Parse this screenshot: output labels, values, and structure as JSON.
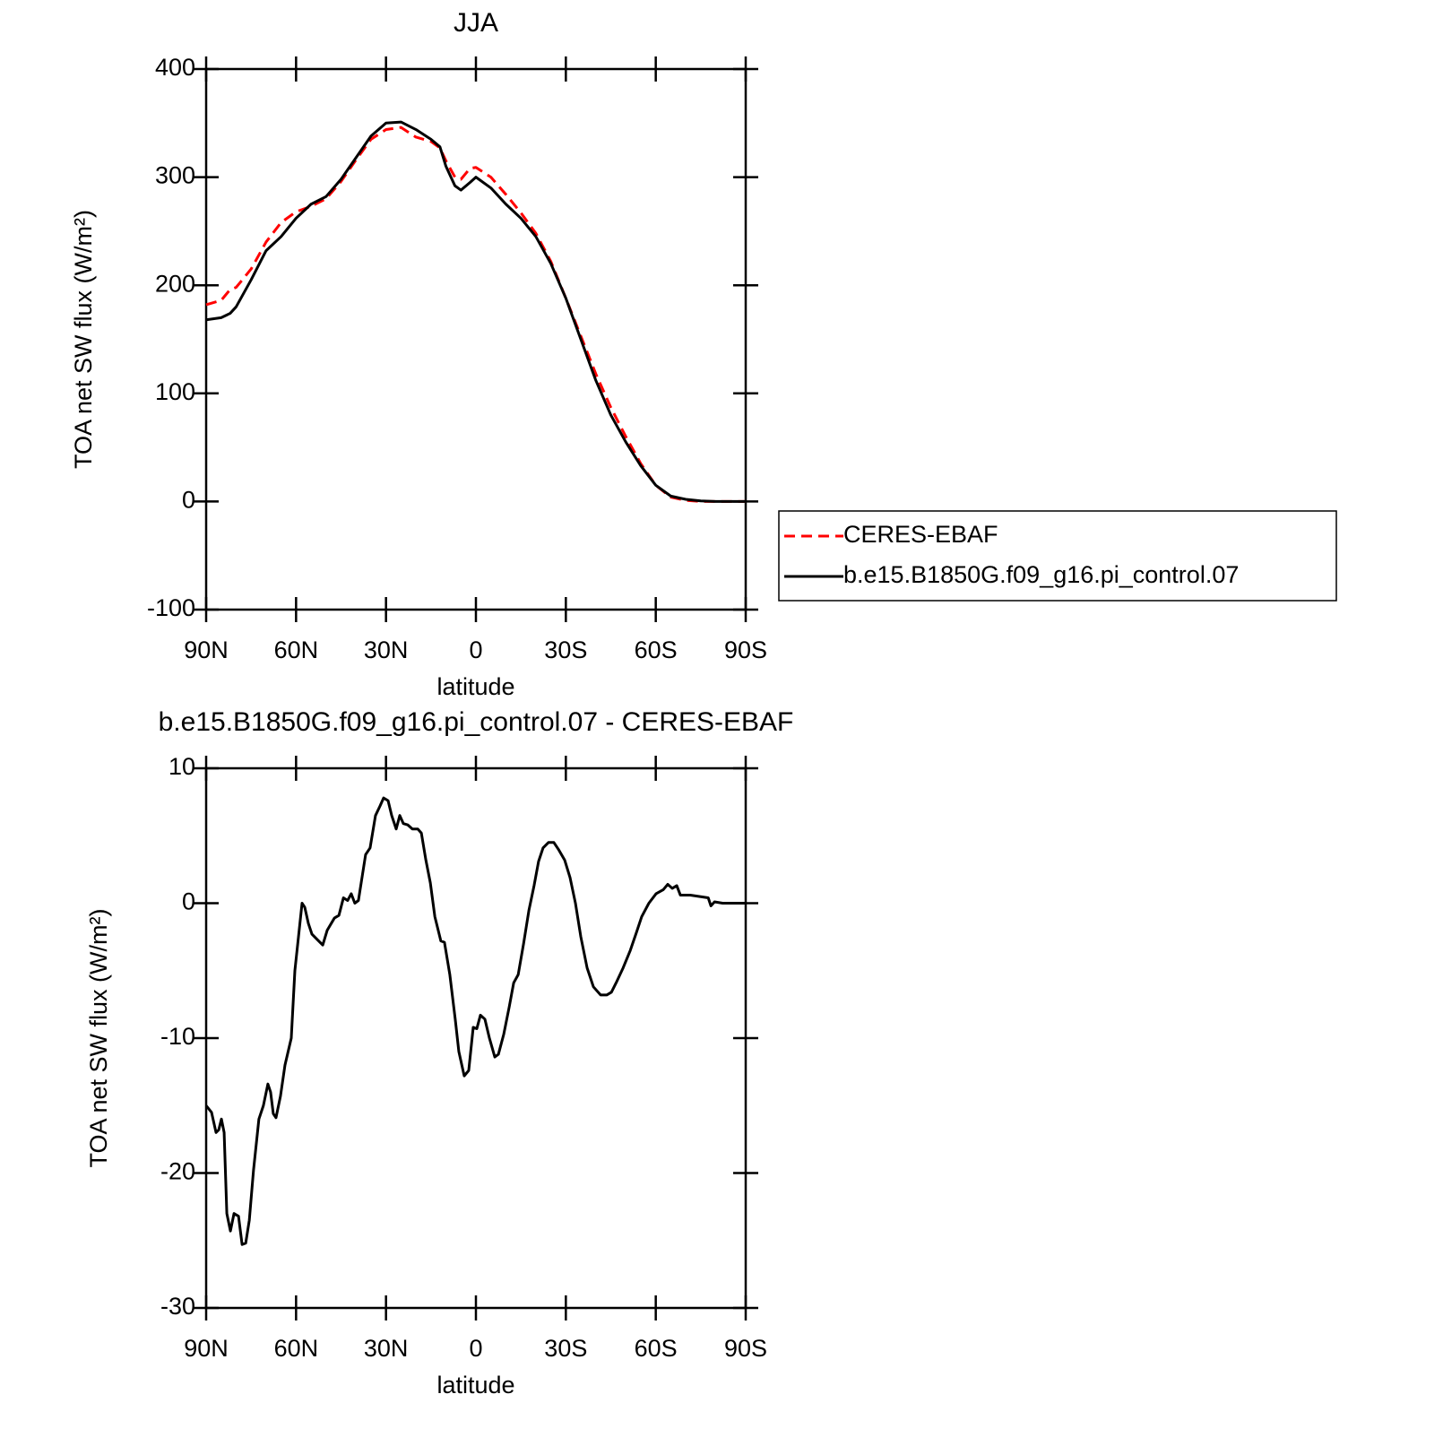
{
  "chart_data": [
    {
      "type": "line",
      "title": "JJA",
      "xlabel": "latitude",
      "ylabel": "TOA net SW flux (W/m²)",
      "x": [
        90,
        85,
        82,
        80,
        75,
        70,
        65,
        60,
        55,
        50,
        45,
        40,
        35,
        30,
        25,
        20,
        15,
        12,
        10,
        7,
        5,
        2,
        0,
        -5,
        -10,
        -15,
        -20,
        -25,
        -30,
        -35,
        -40,
        -45,
        -50,
        -55,
        -60,
        -65,
        -70,
        -75,
        -80,
        -90
      ],
      "xlim": [
        90,
        -90
      ],
      "xticks": [
        {
          "value": 90,
          "label": "90N"
        },
        {
          "value": 60,
          "label": "60N"
        },
        {
          "value": 30,
          "label": "30N"
        },
        0,
        {
          "value": -30,
          "label": "30S"
        },
        {
          "value": -60,
          "label": "60S"
        },
        {
          "value": -90,
          "label": "90S"
        }
      ],
      "ylim": [
        -100,
        400
      ],
      "yticks": [
        -100,
        0,
        100,
        200,
        300,
        400
      ],
      "legend": "right",
      "series": [
        {
          "name": "CERES-EBAF",
          "color": "#ff0000",
          "linestyle": "dashed",
          "values": [
            182,
            186,
            196,
            198,
            215,
            240,
            258,
            268,
            273,
            280,
            296,
            316,
            335,
            344,
            346,
            337,
            333,
            327,
            315,
            300,
            298,
            308,
            309,
            300,
            284,
            267,
            248,
            222,
            188,
            153,
            118,
            87,
            60,
            35,
            15,
            4,
            1,
            0,
            0,
            0
          ]
        },
        {
          "name": "b.e15.B1850G.f09_g16.pi_control.07",
          "color": "#000000",
          "linestyle": "solid",
          "values": [
            168,
            170,
            174,
            180,
            205,
            232,
            245,
            262,
            275,
            282,
            298,
            318,
            338,
            350,
            351,
            344,
            335,
            328,
            310,
            292,
            288,
            295,
            300,
            290,
            275,
            262,
            245,
            220,
            188,
            150,
            112,
            80,
            55,
            33,
            15,
            5,
            2,
            0.5,
            0,
            0
          ]
        }
      ]
    },
    {
      "type": "line",
      "title": "b.e15.B1850G.f09_g16.pi_control.07 - CERES-EBAF",
      "xlabel": "latitude",
      "ylabel": "TOA net SW flux (W/m²)",
      "x": [
        90,
        88.2,
        86.7,
        85.8,
        84.9,
        84,
        83.1,
        81.9,
        80.7,
        79.2,
        78,
        76.8,
        75.6,
        74.2,
        72.4,
        70.9,
        69.4,
        68.5,
        67.6,
        66.7,
        65.2,
        63.7,
        61.6,
        60.4,
        59.2,
        58,
        57.1,
        55.9,
        54.7,
        52.9,
        51.1,
        49.6,
        47.2,
        45.7,
        44.2,
        42.8,
        41.6,
        40.4,
        39.2,
        36.8,
        35.3,
        33.5,
        32,
        30.8,
        29.3,
        28.1,
        26.6,
        25.4,
        24.2,
        22.7,
        21.2,
        19.4,
        18.2,
        16.7,
        15.2,
        13.7,
        11.7,
        10.5,
        8.7,
        6.9,
        5.7,
        3.9,
        2.4,
        0.9,
        -0.3,
        -1.5,
        -3,
        -4.5,
        -6.3,
        -7.5,
        -9.3,
        -11.1,
        -12.6,
        -14.1,
        -15.9,
        -17.7,
        -19.4,
        -20.9,
        -22.4,
        -24.2,
        -26,
        -27.5,
        -29.6,
        -31.4,
        -33.2,
        -35,
        -37.1,
        -39.2,
        -41.6,
        -43.7,
        -45.2,
        -47,
        -49.1,
        -51.5,
        -53.5,
        -55.3,
        -57.7,
        -60.1,
        -62.5,
        -64,
        -65.5,
        -67,
        -68.2,
        -71.5,
        -74.5,
        -77.5,
        -78.4,
        -79.6,
        -82.3,
        -90
      ],
      "xlim": [
        90,
        -90
      ],
      "xticks": [
        {
          "value": 90,
          "label": "90N"
        },
        {
          "value": 60,
          "label": "60N"
        },
        {
          "value": 30,
          "label": "30N"
        },
        0,
        {
          "value": -30,
          "label": "30S"
        },
        {
          "value": -60,
          "label": "60S"
        },
        {
          "value": -90,
          "label": "90S"
        }
      ],
      "ylim": [
        -30,
        10
      ],
      "yticks": [
        -30,
        -20,
        -10,
        0,
        10
      ],
      "series": [
        {
          "color": "#000000",
          "linestyle": "solid",
          "values": [
            -15,
            -15.5,
            -17,
            -16.8,
            -16,
            -17,
            -23,
            -24.3,
            -23,
            -23.2,
            -25.3,
            -25.2,
            -23.5,
            -19.8,
            -16,
            -15,
            -13.4,
            -14,
            -15.6,
            -15.9,
            -14.3,
            -12,
            -10,
            -5,
            -2.5,
            0,
            -0.3,
            -1.5,
            -2.3,
            -2.7,
            -3.1,
            -2,
            -1.1,
            -0.9,
            0.4,
            0.2,
            0.7,
            0,
            0.2,
            3.6,
            4.1,
            6.5,
            7.2,
            7.8,
            7.6,
            6.5,
            5.5,
            6.5,
            5.9,
            5.8,
            5.5,
            5.5,
            5.2,
            3.2,
            1.5,
            -1,
            -2.8,
            -2.9,
            -5.3,
            -8.6,
            -11,
            -12.8,
            -12.4,
            -9.2,
            -9.3,
            -8.3,
            -8.6,
            -10,
            -11.4,
            -11.2,
            -9.7,
            -7.7,
            -5.9,
            -5.3,
            -3,
            -0.5,
            1.3,
            3.1,
            4.1,
            4.5,
            4.5,
            4,
            3.2,
            1.9,
            0,
            -2.5,
            -4.8,
            -6.2,
            -6.8,
            -6.8,
            -6.6,
            -5.8,
            -4.8,
            -3.5,
            -2.2,
            -1,
            0,
            0.7,
            1,
            1.4,
            1.1,
            1.3,
            0.6,
            0.6,
            0.5,
            0.4,
            -0.2,
            0.1,
            0,
            0
          ]
        }
      ]
    }
  ]
}
